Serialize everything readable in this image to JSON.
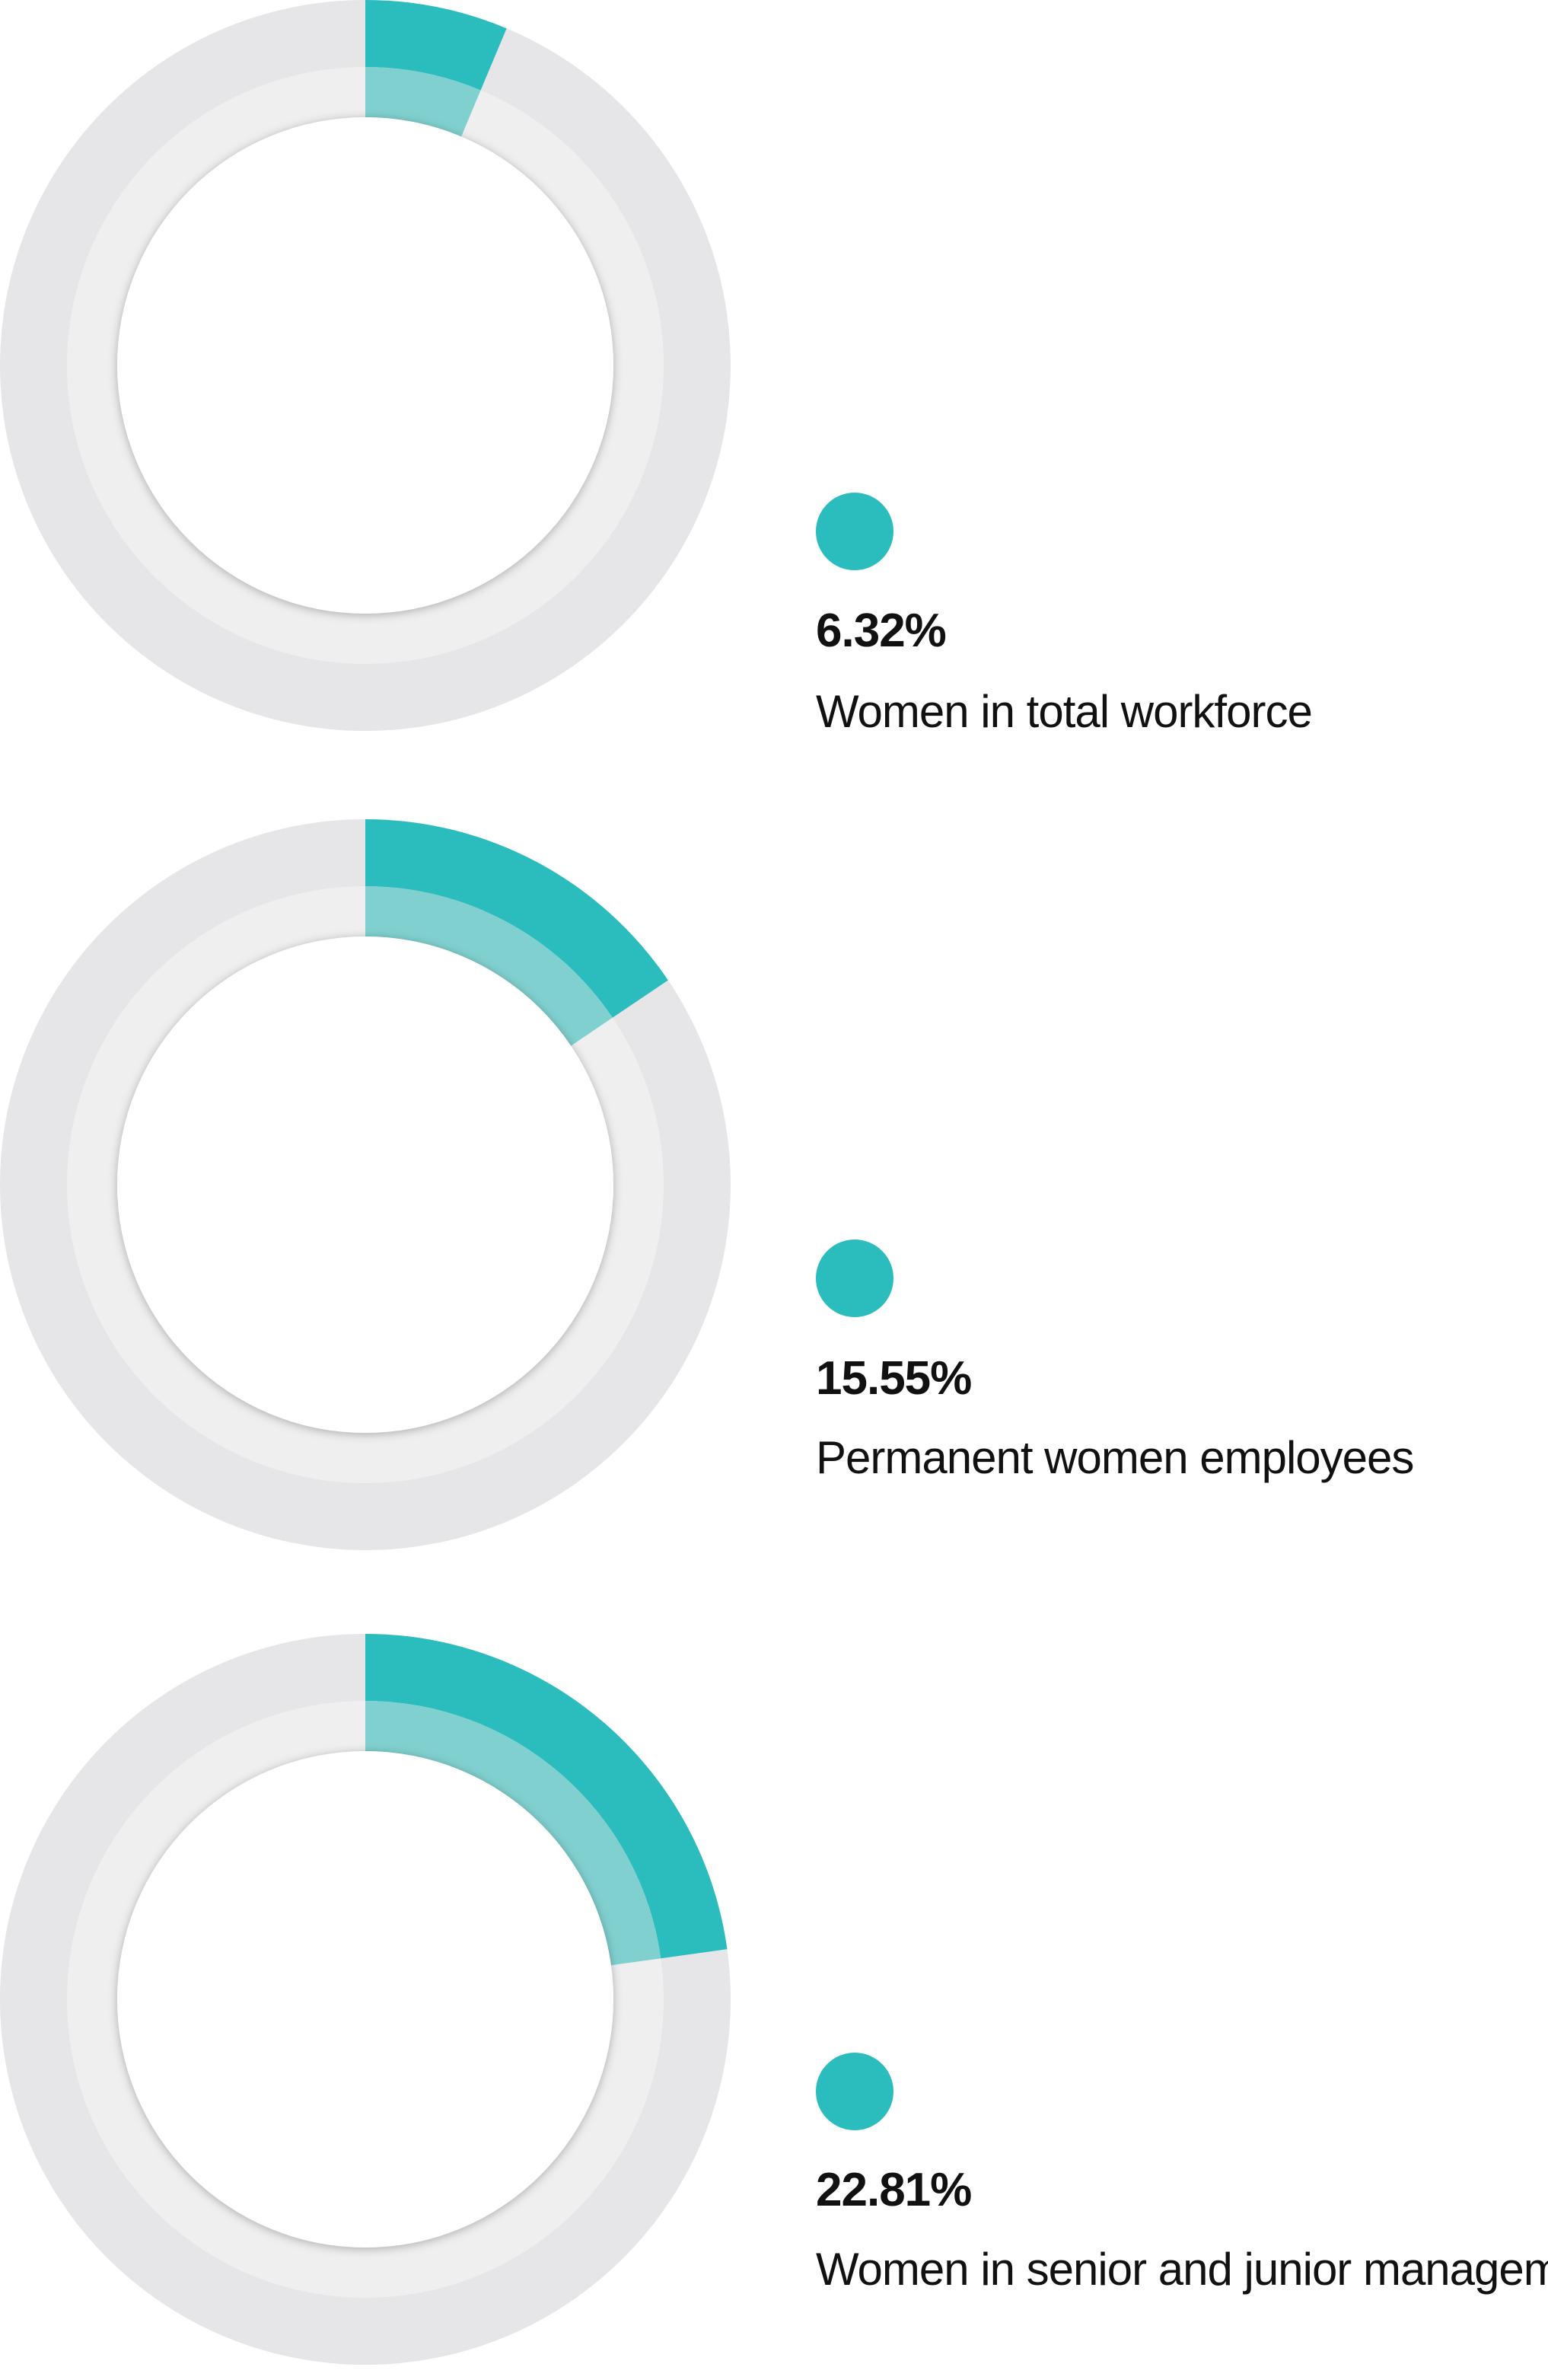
{
  "chart_data": [
    {
      "type": "pie",
      "value_percent": 6.32,
      "value_label": "6.32%",
      "label": "Women in total workforce",
      "color": "#2bbcbe",
      "track_color": "#e6e6e8"
    },
    {
      "type": "pie",
      "value_percent": 15.55,
      "value_label": "15.55%",
      "label": "Permanent women employees",
      "color": "#2bbcbe",
      "track_color": "#e6e6e8"
    },
    {
      "type": "pie",
      "value_percent": 22.81,
      "value_label": "22.81%",
      "label": "Women in senior and junior management",
      "color": "#2bbcbe",
      "track_color": "#e6e6e8"
    }
  ]
}
